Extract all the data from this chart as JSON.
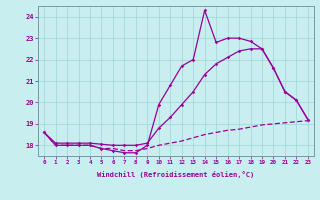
{
  "xlabel": "Windchill (Refroidissement éolien,°C)",
  "background_color": "#c8eef0",
  "grid_color": "#a0d4d8",
  "line_color": "#990099",
  "xlim": [
    -0.5,
    23.5
  ],
  "ylim": [
    17.5,
    24.5
  ],
  "yticks": [
    18,
    19,
    20,
    21,
    22,
    23,
    24
  ],
  "xticks": [
    0,
    1,
    2,
    3,
    4,
    5,
    6,
    7,
    8,
    9,
    10,
    11,
    12,
    13,
    14,
    15,
    16,
    17,
    18,
    19,
    20,
    21,
    22,
    23
  ],
  "hours": [
    0,
    1,
    2,
    3,
    4,
    5,
    6,
    7,
    8,
    9,
    10,
    11,
    12,
    13,
    14,
    15,
    16,
    17,
    18,
    19,
    20,
    21,
    22,
    23
  ],
  "line_spiky": [
    18.6,
    18.0,
    18.0,
    18.0,
    18.0,
    17.85,
    17.75,
    17.65,
    17.65,
    18.0,
    19.9,
    20.8,
    21.7,
    22.0,
    24.3,
    22.8,
    23.0,
    23.0,
    22.85,
    22.5,
    21.6,
    20.5,
    20.1,
    19.2
  ],
  "line_smooth": [
    18.6,
    18.1,
    18.1,
    18.1,
    18.1,
    18.05,
    18.0,
    18.0,
    18.0,
    18.1,
    18.8,
    19.3,
    19.9,
    20.5,
    21.3,
    21.8,
    22.1,
    22.4,
    22.5,
    22.5,
    21.6,
    20.5,
    20.1,
    19.2
  ],
  "line_dashed": [
    18.6,
    18.0,
    18.0,
    18.0,
    18.0,
    17.85,
    17.85,
    17.75,
    17.75,
    17.85,
    18.0,
    18.1,
    18.2,
    18.35,
    18.5,
    18.6,
    18.7,
    18.75,
    18.85,
    18.95,
    19.0,
    19.05,
    19.1,
    19.15
  ]
}
